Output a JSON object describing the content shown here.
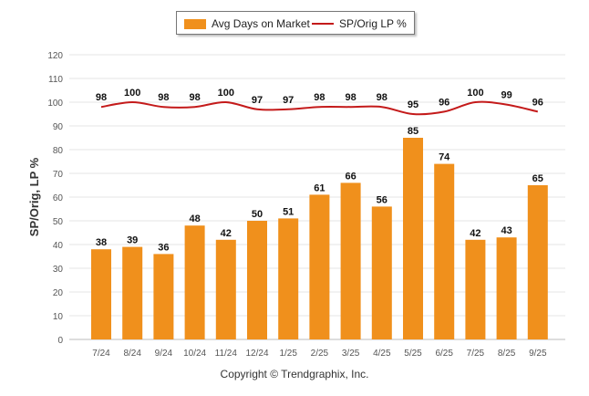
{
  "legend": {
    "bar_label": "Avg Days on Market",
    "line_label": "SP/Orig LP %",
    "bar_color": "#f0901c",
    "line_color": "#c41a1a"
  },
  "copyright": "Copyright © Trendgraphix, Inc.",
  "chart_data": {
    "type": "bar",
    "categories": [
      "7/24",
      "8/24",
      "9/24",
      "10/24",
      "11/24",
      "12/24",
      "1/25",
      "2/25",
      "3/25",
      "4/25",
      "5/25",
      "6/25",
      "7/25",
      "8/25",
      "9/25"
    ],
    "series": [
      {
        "name": "Avg Days on Market",
        "type": "bar",
        "values": [
          38,
          39,
          36,
          48,
          42,
          50,
          51,
          61,
          66,
          56,
          85,
          74,
          42,
          43,
          65
        ]
      },
      {
        "name": "SP/Orig LP %",
        "type": "line",
        "values": [
          98,
          100,
          98,
          98,
          100,
          97,
          97,
          98,
          98,
          98,
          95,
          96,
          100,
          99,
          96
        ]
      }
    ],
    "ylabel": "SP/Orig, LP %",
    "ylim": [
      0,
      120
    ],
    "yticks": [
      0,
      10,
      20,
      30,
      40,
      50,
      60,
      70,
      80,
      90,
      100,
      110,
      120
    ],
    "grid": true,
    "legend_position": "top-center"
  }
}
